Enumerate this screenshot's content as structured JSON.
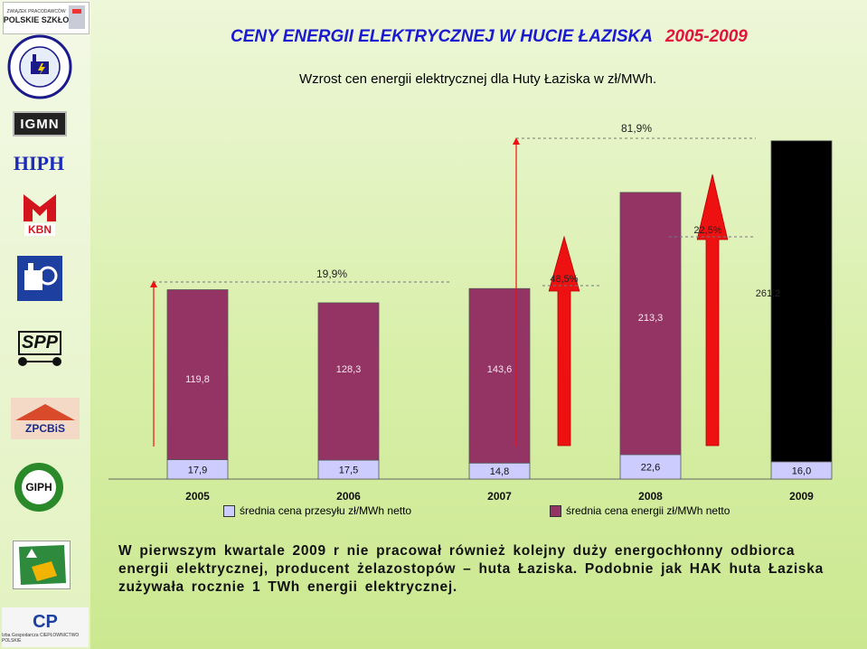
{
  "header": {
    "title": "CENY ENERGII ELEKTRYCZNEJ  W HUCIE ŁAZISKA",
    "title_years": "2005-2009",
    "subtitle": "Wzrost cen energii elektrycznej dla Huty Łaziska w  zł/MWh."
  },
  "sidebar": {
    "logos": [
      {
        "name": "zpps-logo",
        "text": "ZWIĄZEK PRACODAWCÓW POLSKIE SZKŁO"
      },
      {
        "name": "circular-association-seal",
        "text": "IZBA ENERGETYKI PRZEMYSŁOWEJ I ODBIORCÓW ENERGII"
      },
      {
        "name": "igmn-logo",
        "text": "IGMN"
      },
      {
        "name": "hiph-logo",
        "text": "HIPH"
      },
      {
        "name": "kbn-logo",
        "text": "KBN"
      },
      {
        "name": "machine-icon-logo",
        "text": ""
      },
      {
        "name": "spp-logo",
        "text": "SPP"
      },
      {
        "name": "zpcbis-logo",
        "text": "ZPCBiS"
      },
      {
        "name": "giph-logo",
        "text": "GIPH"
      },
      {
        "name": "forestry-map-logo",
        "text": ""
      },
      {
        "name": "igcp-logo",
        "text": "Izba Gospodarcza CIEPŁOWNICTWO POLSKIE"
      }
    ]
  },
  "chart_data": {
    "type": "bar",
    "stacked": true,
    "categories": [
      "2005",
      "2006",
      "2007",
      "2008",
      "2009"
    ],
    "series": [
      {
        "name": "średnia cena przesyłu zł/MWh netto",
        "values": [
          17.9,
          17.5,
          14.8,
          22.6,
          16.0
        ],
        "labels": [
          "17,9",
          "17,5",
          "14,8",
          "22,6",
          "16,0"
        ],
        "color": "#ccccff"
      },
      {
        "name": "średnia cena energii zł/MWh netto",
        "values": [
          119.8,
          128.3,
          143.6,
          213.3,
          261.2
        ],
        "labels": [
          "119,8",
          "128,3",
          "143,6",
          "213,3",
          "261,2"
        ],
        "colors": [
          "#943464",
          "#943464",
          "#943464",
          "#943464",
          "#000000"
        ]
      }
    ],
    "growth_annotations": [
      {
        "label": "19,9%",
        "kind": "year-over-year"
      },
      {
        "label": "48,5%",
        "kind": "year-over-year"
      },
      {
        "label": "22,5%",
        "kind": "year-over-year"
      },
      {
        "label": "81,9%",
        "kind": "total"
      }
    ],
    "arrow_color": "#ee1111",
    "legend_position": "bottom",
    "grid": false
  },
  "paragraph": "W pierwszym kwartale 2009 r nie pracował również kolejny duży energochłonny odbiorca energii elektrycznej, producent żelazostopów – huta Łaziska. Podobnie jak HAK huta Łaziska zużywała rocznie 1 TWh energii elektrycznej."
}
